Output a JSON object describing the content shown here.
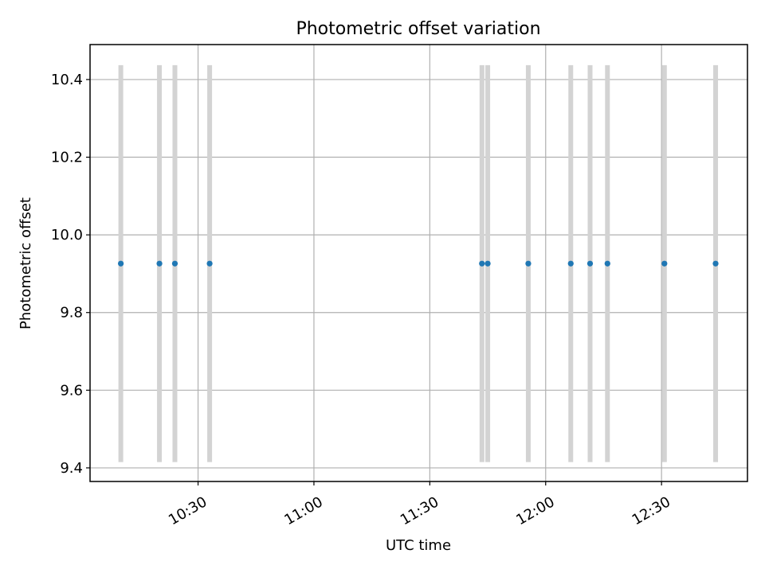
{
  "chart_data": {
    "type": "scatter",
    "title": "Photometric offset variation",
    "xlabel": "UTC time",
    "ylabel": "Photometric offset",
    "xlim": [
      "10:02:02",
      "12:52:15"
    ],
    "ylim": [
      9.365,
      10.49
    ],
    "x_ticks": [
      "10:30",
      "11:00",
      "11:30",
      "12:00",
      "12:30"
    ],
    "y_ticks": [
      9.4,
      9.6,
      9.8,
      10.0,
      10.2,
      10.4
    ],
    "y_tick_labels": [
      "9.4",
      "9.6",
      "9.8",
      "10.0",
      "10.2",
      "10.4"
    ],
    "grid": true,
    "series": [
      {
        "color": "#1f77b4",
        "errorbar_color": "#d3d3d3",
        "points": [
          {
            "x": "10:10:00",
            "y": 9.926,
            "yerr_low": 9.415,
            "yerr_high": 10.437
          },
          {
            "x": "10:20:00",
            "y": 9.926,
            "yerr_low": 9.415,
            "yerr_high": 10.437
          },
          {
            "x": "10:24:00",
            "y": 9.926,
            "yerr_low": 9.415,
            "yerr_high": 10.437
          },
          {
            "x": "10:33:00",
            "y": 9.926,
            "yerr_low": 9.415,
            "yerr_high": 10.437
          },
          {
            "x": "11:43:30",
            "y": 9.926,
            "yerr_low": 9.415,
            "yerr_high": 10.437
          },
          {
            "x": "11:45:00",
            "y": 9.926,
            "yerr_low": 9.415,
            "yerr_high": 10.437
          },
          {
            "x": "11:55:30",
            "y": 9.926,
            "yerr_low": 9.415,
            "yerr_high": 10.437
          },
          {
            "x": "12:06:30",
            "y": 9.926,
            "yerr_low": 9.415,
            "yerr_high": 10.437
          },
          {
            "x": "12:11:30",
            "y": 9.926,
            "yerr_low": 9.415,
            "yerr_high": 10.437
          },
          {
            "x": "12:16:00",
            "y": 9.926,
            "yerr_low": 9.415,
            "yerr_high": 10.437
          },
          {
            "x": "12:30:45",
            "y": 9.926,
            "yerr_low": 9.415,
            "yerr_high": 10.437
          },
          {
            "x": "12:44:00",
            "y": 9.926,
            "yerr_low": 9.415,
            "yerr_high": 10.437
          }
        ]
      }
    ]
  }
}
